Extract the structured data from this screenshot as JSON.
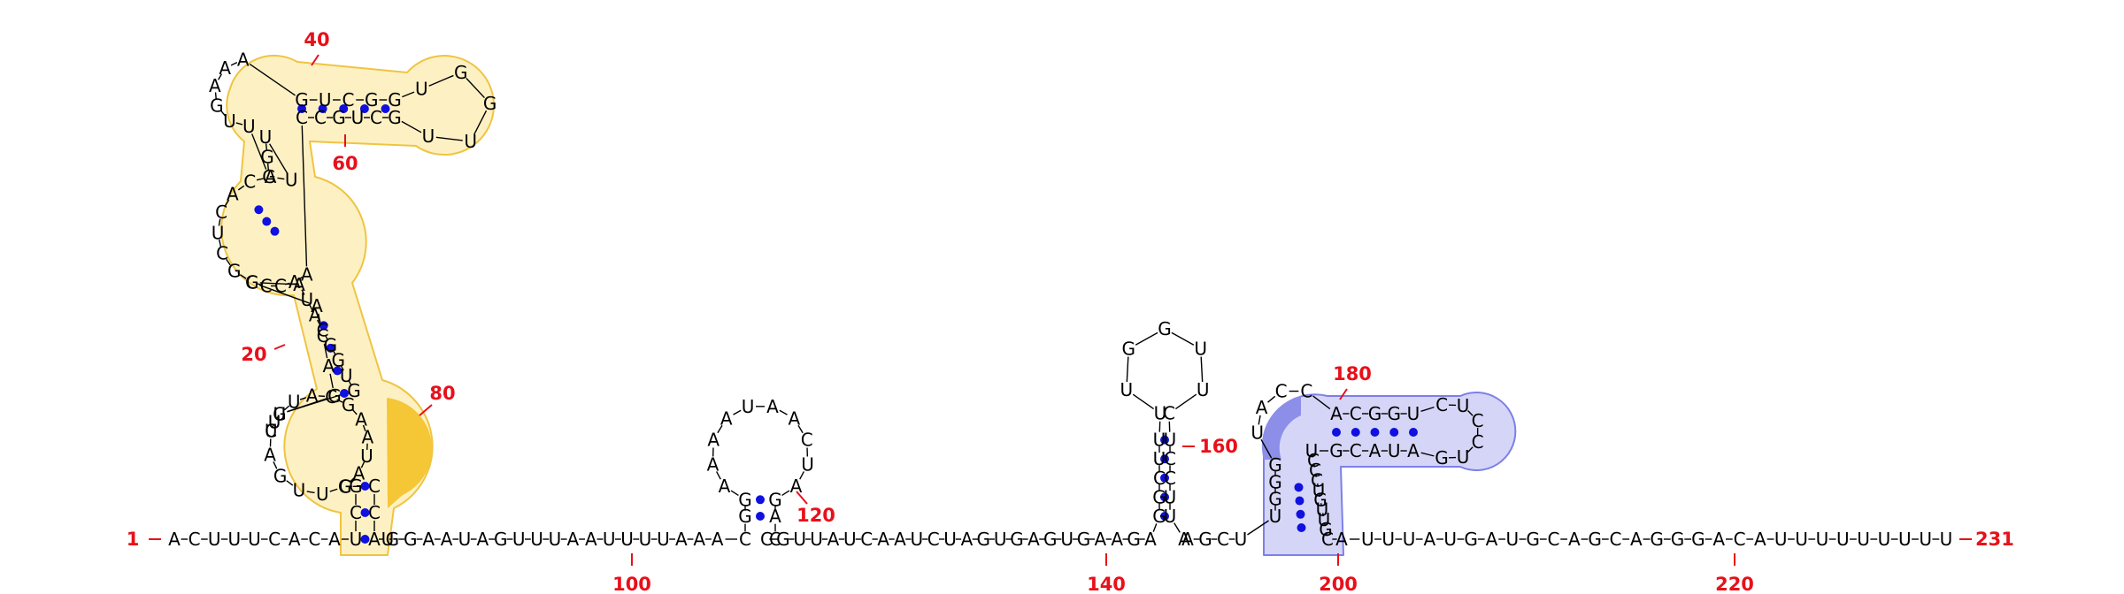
{
  "structure": {
    "start_label": "1",
    "end_label": "231",
    "bases": {
      "base_1": "A",
      "base_2": "C",
      "base_3": "U",
      "base_4": "U",
      "base_5": "U",
      "base_6": "C",
      "base_7": "A",
      "base_8": "C",
      "base_9": "A",
      "base_10": "U",
      "base_11": "C",
      "base_12": "G",
      "base_13": "C",
      "base_14": "U",
      "base_15": "U",
      "base_16": "G",
      "base_17": "A",
      "base_18": "C",
      "base_19": "U",
      "base_20": "U",
      "base_21": "U",
      "base_22": "G",
      "base_23": "A",
      "base_24": "C",
      "base_25": "A",
      "base_26": "C",
      "base_27": "G",
      "base_28": "C",
      "base_29": "U",
      "base_30": "C",
      "base_31": "A",
      "base_32": "C",
      "base_33": "A",
      "base_34": "U",
      "base_35": "U",
      "base_36": "G",
      "base_37": "G",
      "base_38": "U",
      "base_39": "U",
      "base_40": "G",
      "base_41": "A",
      "base_42": "A",
      "base_43": "A",
      "base_44": "G",
      "base_45": "U",
      "base_46": "C",
      "base_47": "G",
      "base_48": "G",
      "base_49": "U",
      "base_50": "G",
      "base_51": "G",
      "base_52": "U",
      "base_53": "U",
      "base_54": "G",
      "base_55": "C",
      "base_56": "U",
      "base_57": "G",
      "base_58": "C",
      "base_59": "C",
      "base_60": "A",
      "base_61": "A",
      "base_62": "C",
      "base_63": "C",
      "base_64": "G",
      "base_65": "A",
      "base_66": "U",
      "base_67": "A",
      "base_68": "C",
      "base_69": "G",
      "base_70": "G",
      "base_71": "U",
      "base_72": "G",
      "base_73": "G",
      "base_74": "U",
      "base_75": "A",
      "base_76": "C",
      "base_77": "G",
      "base_78": "A",
      "base_79": "A",
      "base_80": "U",
      "base_81": "A",
      "base_82": "G",
      "base_83": "C",
      "base_84": "C",
      "base_85": "A",
      "base_86": "U",
      "base_87": "G",
      "base_88": "G",
      "base_89": "A",
      "base_90": "A",
      "base_91": "U",
      "base_92": "A",
      "base_93": "G",
      "base_94": "U",
      "base_95": "U",
      "base_96": "U",
      "base_97": "A",
      "base_98": "A",
      "base_99": "U",
      "base_100": "U",
      "base_101": "U",
      "base_102": "U",
      "base_103": "A",
      "base_104": "A",
      "base_105": "A",
      "base_106": "C",
      "base_107": "G",
      "base_108": "G",
      "base_109": "A",
      "base_110": "A",
      "base_111": "A",
      "base_112": "A",
      "base_113": "U",
      "base_114": "A",
      "base_115": "A",
      "base_116": "C",
      "base_117": "U",
      "base_118": "A",
      "base_119": "G",
      "base_120": "A",
      "base_121": "C",
      "base_122": "C",
      "base_123": "G",
      "base_124": "U",
      "base_125": "U",
      "base_126": "A",
      "base_127": "U",
      "base_128": "C",
      "base_129": "A",
      "base_130": "A",
      "base_131": "U",
      "base_132": "C",
      "base_133": "U",
      "base_134": "A",
      "base_135": "G",
      "base_136": "U",
      "base_137": "G",
      "base_138": "A",
      "base_139": "G",
      "base_140": "U",
      "base_141": "G",
      "base_142": "A",
      "base_143": "A",
      "base_144": "G",
      "base_145": "A",
      "base_146": "G",
      "base_147": "G",
      "base_148": "C",
      "base_149": "U",
      "base_150": "U",
      "base_151": "U",
      "base_152": "U",
      "base_153": "G",
      "base_154": "G",
      "base_155": "U",
      "base_156": "U",
      "base_157": "C",
      "base_158": "U",
      "base_159": "C",
      "base_160": "C",
      "base_161": "U",
      "base_162": "U",
      "base_163": "A",
      "base_164": "A",
      "base_165": "G",
      "base_166": "C",
      "base_167": "U",
      "base_168": "U",
      "base_169": "G",
      "base_170": "G",
      "base_171": "G",
      "base_172": "U",
      "base_173": "A",
      "base_174": "C",
      "base_175": "C",
      "base_176": "A",
      "base_177": "C",
      "base_178": "G",
      "base_179": "G",
      "base_180": "U",
      "base_181": "C",
      "base_182": "U",
      "base_183": "C",
      "base_184": "C",
      "base_185": "U",
      "base_186": "G",
      "base_187": "A",
      "base_188": "U",
      "base_189": "A",
      "base_190": "C",
      "base_191": "G",
      "base_192": "U",
      "base_193": "C",
      "base_194": "C",
      "base_195": "C",
      "base_196": "U",
      "base_197": "G",
      "base_198": "U",
      "base_199": "U",
      "base_200": "G",
      "base_201": "C",
      "base_202": "A",
      "base_203": "U",
      "base_204": "U",
      "base_205": "U",
      "base_206": "A",
      "base_207": "U",
      "base_208": "G",
      "base_209": "A",
      "base_210": "U",
      "base_211": "G",
      "base_212": "C",
      "base_213": "A",
      "base_214": "G",
      "base_215": "C",
      "base_216": "A",
      "base_217": "G",
      "base_218": "G",
      "base_219": "G",
      "base_220": "A",
      "base_221": "C",
      "base_222": "A",
      "base_223": "U",
      "base_224": "U",
      "base_225": "U",
      "base_226": "U",
      "base_227": "U",
      "base_228": "U",
      "base_229": "U",
      "base_230": "U",
      "base_231": "U"
    },
    "position_labels": {
      "n20": "20",
      "n40": "40",
      "n60": "60",
      "n80": "80",
      "n100": "100",
      "n120": "120",
      "n140": "140",
      "n160": "160",
      "n180": "180",
      "n200": "200",
      "n220": "220"
    },
    "highlight_colors": {
      "yellow_fill": "#fdf1c4",
      "yellow_stroke": "#f0c441",
      "yellow_accent": "#f5c636",
      "blue_fill": "#d5d6f7",
      "blue_stroke": "#7d7fe8",
      "blue_accent": "#8c8ee8"
    },
    "base_pair_color": "#1010e0",
    "label_color": "#e8101a"
  }
}
